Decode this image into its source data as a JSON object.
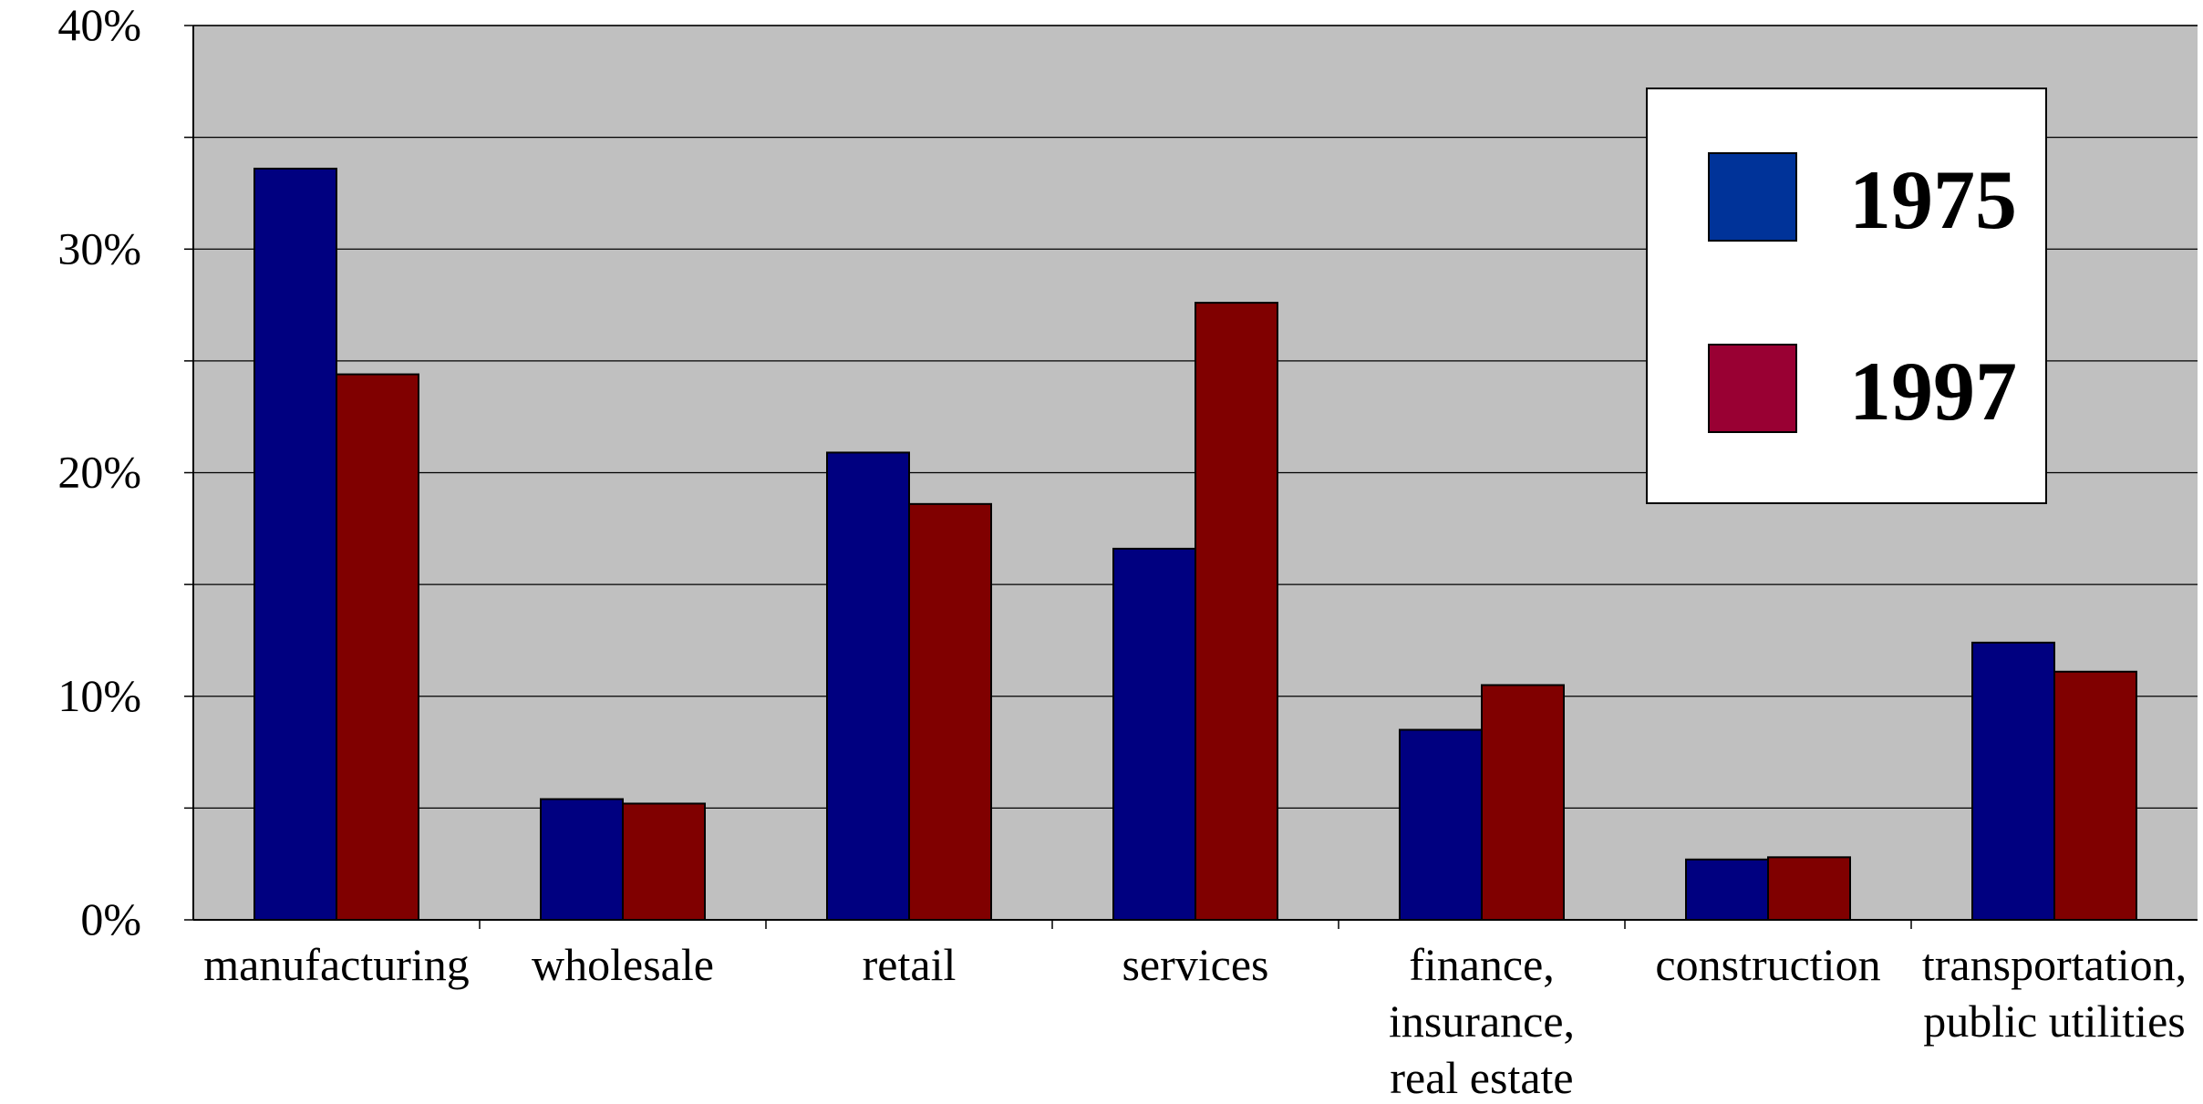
{
  "chart_data": {
    "type": "bar",
    "categories": [
      [
        "manufacturing"
      ],
      [
        "wholesale"
      ],
      [
        "retail"
      ],
      [
        "services"
      ],
      [
        "finance,",
        "insurance,",
        "real estate"
      ],
      [
        "construction"
      ],
      [
        "transportation,",
        "public utilities"
      ]
    ],
    "series": [
      {
        "name": "1975",
        "color": "#000080",
        "legend_color": "#003399",
        "values": [
          33.6,
          5.4,
          20.9,
          16.6,
          8.5,
          2.7,
          12.4
        ]
      },
      {
        "name": "1997",
        "color": "#800000",
        "legend_color": "#990033",
        "values": [
          24.4,
          5.2,
          18.6,
          27.6,
          10.5,
          2.8,
          11.1
        ]
      }
    ],
    "ylim": [
      0,
      40
    ],
    "yticks": [
      "0%",
      "10%",
      "20%",
      "30%",
      "40%"
    ],
    "ytick_values": [
      0,
      10,
      20,
      30,
      40
    ],
    "minor_gridlines": [
      5,
      15,
      25,
      35
    ],
    "grid": true,
    "legend_position": "top-right",
    "plot_background": "#c0c0c0"
  }
}
